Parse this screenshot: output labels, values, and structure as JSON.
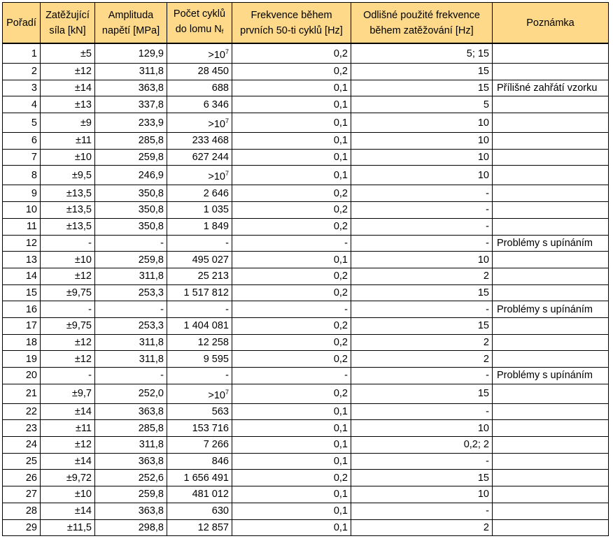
{
  "headers": {
    "c1": "Pořadí",
    "c2": "Zatěžující síla [kN]",
    "c3": "Amplituda napětí [MPa]",
    "c4_main": "Počet cyklů do lomu N",
    "c4_sub": "f",
    "c5": "Frekvence během prvních 50-ti cyklů [Hz]",
    "c6": "Odlišné použité frekvence během zatěžování [Hz]",
    "c7": "Poznámka"
  },
  "gt_base": ">10",
  "gt_exp": "7",
  "rows": [
    {
      "n": "1",
      "f": "±5",
      "a": "129,9",
      "c": "",
      "gt": true,
      "fr": "0,2",
      "of": "5; 15",
      "note": ""
    },
    {
      "n": "2",
      "f": "±12",
      "a": "311,8",
      "c": "28 450",
      "gt": false,
      "fr": "0,2",
      "of": "15",
      "note": ""
    },
    {
      "n": "3",
      "f": "±14",
      "a": "363,8",
      "c": "688",
      "gt": false,
      "fr": "0,1",
      "of": "15",
      "note": "Přílišné zahřátí vzorku"
    },
    {
      "n": "4",
      "f": "±13",
      "a": "337,8",
      "c": "6 346",
      "gt": false,
      "fr": "0,1",
      "of": "5",
      "note": ""
    },
    {
      "n": "5",
      "f": "±9",
      "a": "233,9",
      "c": "",
      "gt": true,
      "fr": "0,1",
      "of": "10",
      "note": ""
    },
    {
      "n": "6",
      "f": "±11",
      "a": "285,8",
      "c": "233 468",
      "gt": false,
      "fr": "0,1",
      "of": "10",
      "note": ""
    },
    {
      "n": "7",
      "f": "±10",
      "a": "259,8",
      "c": "627 244",
      "gt": false,
      "fr": "0,1",
      "of": "10",
      "note": ""
    },
    {
      "n": "8",
      "f": "±9,5",
      "a": "246,9",
      "c": "",
      "gt": true,
      "fr": "0,1",
      "of": "10",
      "note": ""
    },
    {
      "n": "9",
      "f": "±13,5",
      "a": "350,8",
      "c": "2 646",
      "gt": false,
      "fr": "0,2",
      "of": "-",
      "note": ""
    },
    {
      "n": "10",
      "f": "±13,5",
      "a": "350,8",
      "c": "1 035",
      "gt": false,
      "fr": "0,2",
      "of": "-",
      "note": ""
    },
    {
      "n": "11",
      "f": "±13,5",
      "a": "350,8",
      "c": "1 849",
      "gt": false,
      "fr": "0,2",
      "of": "-",
      "note": ""
    },
    {
      "n": "12",
      "f": "-",
      "a": "-",
      "c": "-",
      "gt": false,
      "fr": "-",
      "of": "-",
      "note": "Problémy s upínáním"
    },
    {
      "n": "13",
      "f": "±10",
      "a": "259,8",
      "c": "495 027",
      "gt": false,
      "fr": "0,1",
      "of": "10",
      "note": ""
    },
    {
      "n": "14",
      "f": "±12",
      "a": "311,8",
      "c": "25 213",
      "gt": false,
      "fr": "0,2",
      "of": "2",
      "note": ""
    },
    {
      "n": "15",
      "f": "±9,75",
      "a": "253,3",
      "c": "1 517 812",
      "gt": false,
      "fr": "0,2",
      "of": "15",
      "note": ""
    },
    {
      "n": "16",
      "f": "-",
      "a": "-",
      "c": "-",
      "gt": false,
      "fr": "-",
      "of": "-",
      "note": "Problémy s upínáním"
    },
    {
      "n": "17",
      "f": "±9,75",
      "a": "253,3",
      "c": "1 404 081",
      "gt": false,
      "fr": "0,2",
      "of": "15",
      "note": ""
    },
    {
      "n": "18",
      "f": "±12",
      "a": "311,8",
      "c": "12 258",
      "gt": false,
      "fr": "0,2",
      "of": "2",
      "note": ""
    },
    {
      "n": "19",
      "f": "±12",
      "a": "311,8",
      "c": "9 595",
      "gt": false,
      "fr": "0,2",
      "of": "2",
      "note": ""
    },
    {
      "n": "20",
      "f": "-",
      "a": "-",
      "c": "-",
      "gt": false,
      "fr": "-",
      "of": "-",
      "note": "Problémy s upínáním"
    },
    {
      "n": "21",
      "f": "±9,7",
      "a": "252,0",
      "c": "",
      "gt": true,
      "fr": "0,2",
      "of": "15",
      "note": ""
    },
    {
      "n": "22",
      "f": "±14",
      "a": "363,8",
      "c": "563",
      "gt": false,
      "fr": "0,1",
      "of": "-",
      "note": ""
    },
    {
      "n": "23",
      "f": "±11",
      "a": "285,8",
      "c": "153 716",
      "gt": false,
      "fr": "0,1",
      "of": "10",
      "note": ""
    },
    {
      "n": "24",
      "f": "±12",
      "a": "311,8",
      "c": "7 266",
      "gt": false,
      "fr": "0,1",
      "of": "0,2; 2",
      "note": ""
    },
    {
      "n": "25",
      "f": "±14",
      "a": "363,8",
      "c": "846",
      "gt": false,
      "fr": "0,1",
      "of": "-",
      "note": ""
    },
    {
      "n": "26",
      "f": "±9,72",
      "a": "252,6",
      "c": "1 656 491",
      "gt": false,
      "fr": "0,2",
      "of": "15",
      "note": ""
    },
    {
      "n": "27",
      "f": "±10",
      "a": "259,8",
      "c": "481 012",
      "gt": false,
      "fr": "0,1",
      "of": "10",
      "note": ""
    },
    {
      "n": "28",
      "f": "±14",
      "a": "363,8",
      "c": "630",
      "gt": false,
      "fr": "0,1",
      "of": "-",
      "note": ""
    },
    {
      "n": "29",
      "f": "±11,5",
      "a": "298,8",
      "c": "12 857",
      "gt": false,
      "fr": "0,1",
      "of": "2",
      "note": ""
    }
  ]
}
